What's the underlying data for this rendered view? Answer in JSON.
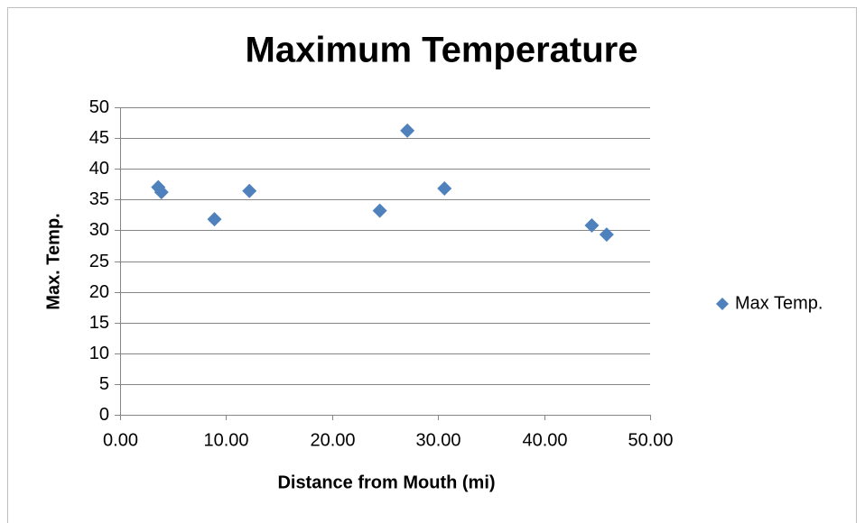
{
  "chart_data": {
    "type": "scatter",
    "title": "Maximum Temperature",
    "x_label": "Distance from Mouth (mi)",
    "y_label": "Max. Temp.",
    "series": [
      {
        "name": "Max Temp.",
        "color": "#4f81bd",
        "x": [
          3.6,
          3.9,
          8.9,
          12.2,
          24.5,
          27.1,
          30.6,
          44.5,
          45.9
        ],
        "values": [
          37.0,
          36.2,
          31.8,
          36.4,
          33.2,
          46.2,
          36.8,
          30.8,
          29.3
        ]
      }
    ],
    "xlim": [
      0,
      50
    ],
    "xticks": [
      {
        "value": 0,
        "label": "0.00"
      },
      {
        "value": 10,
        "label": "10.00"
      },
      {
        "value": 20,
        "label": "20.00"
      },
      {
        "value": 30,
        "label": "30.00"
      },
      {
        "value": 40,
        "label": "40.00"
      },
      {
        "value": 50,
        "label": "50.00"
      }
    ],
    "ylim": [
      0,
      50
    ],
    "yticks": [
      0,
      5,
      10,
      15,
      20,
      25,
      30,
      35,
      40,
      45,
      50
    ],
    "grid": true,
    "legend": "right"
  }
}
